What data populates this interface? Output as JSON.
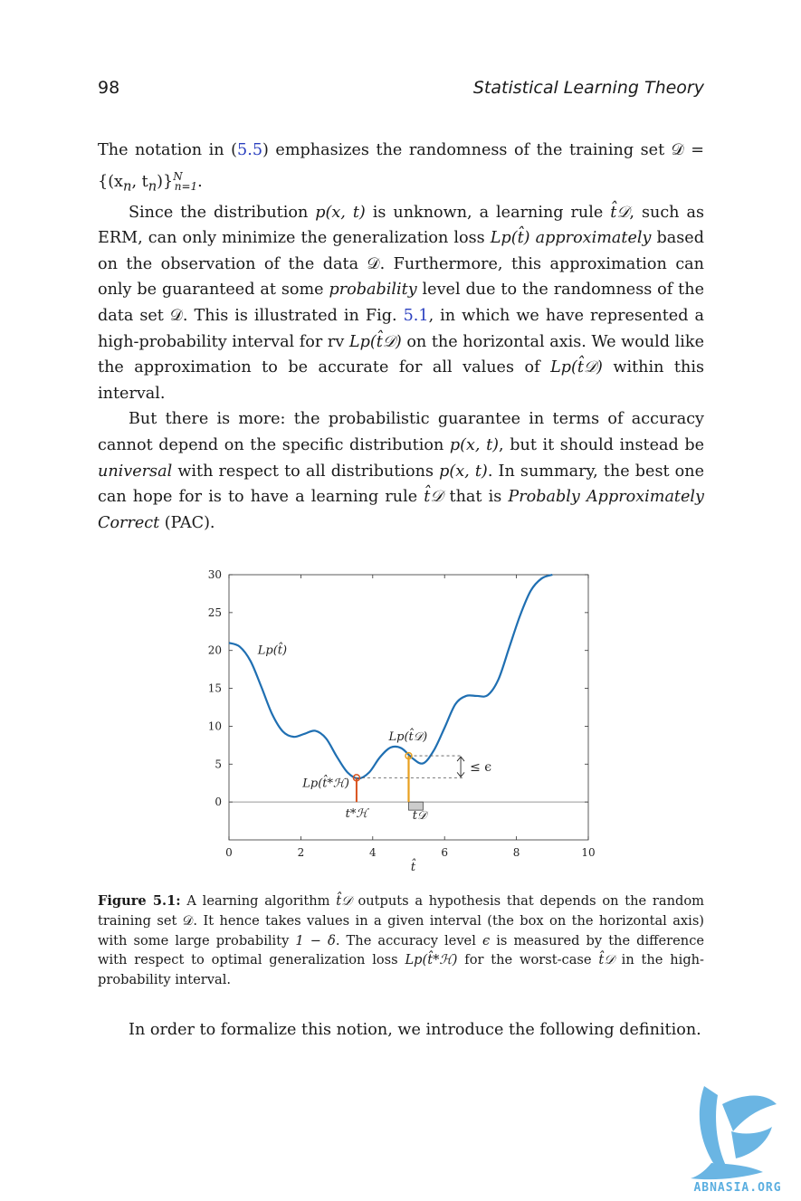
{
  "header": {
    "page_number": "98",
    "chapter_title": "Statistical Learning Theory"
  },
  "paragraphs": {
    "p1": {
      "a": "The notation in (",
      "ref": "5.5",
      "b": ") emphasizes the randomness of the training set 𝒟 = {(x",
      "c": ", t",
      "d": ")}",
      "e": "."
    },
    "p2": {
      "a": "Since the distribution ",
      "b": " is unknown, a learning rule ",
      "c": ", such as ERM, can only minimize the generalization loss ",
      "d": " ",
      "approx": "approximately",
      "e": " based on the observation of the data 𝒟. Furthermore, this approximation can only be guaranteed at some ",
      "prob": "probability",
      "f": " level due to the randomness of the data set 𝒟. This is illustrated in Fig. ",
      "ref": "5.1",
      "g": ", in which we have represented a high-probability interval for rv ",
      "h": " on the horizontal axis. We would like the approximation to be accurate for all values of ",
      "i": " within this interval."
    },
    "p3": {
      "a": "But there is more: the probabilistic guarantee in terms of accuracy cannot depend on the specific distribution ",
      "b": ", but it should instead be ",
      "universal": "universal",
      "c": " with respect to all distributions ",
      "d": ". In summary, the best one can hope for is to have a learning rule ",
      "e": " that is ",
      "pac": "Probably Approximately Correct",
      "f": " (PAC)."
    },
    "closing": "In order to formalize this notion, we introduce the following definition."
  },
  "math": {
    "pxt": "p(x, t)",
    "t_hat_D": "t̂𝒟",
    "Lp_that": "Lp(t̂)",
    "Lp_that_D": "Lp(t̂𝒟)",
    "Lp_that_H": "Lp(t̂*ℋ)",
    "n": "n",
    "N": "N",
    "n_eq_1": "n=1",
    "delta": "1 − δ",
    "epsilon": "ϵ"
  },
  "caption": {
    "label": "Figure 5.1:",
    "a": " A learning algorithm ",
    "b": " outputs a hypothesis that depends on the random training set 𝒟. It hence takes values in a given interval (the box on the horizontal axis) with some large probability ",
    "c": ". The accuracy level ",
    "d": " is measured by the difference with respect to optimal generalization loss ",
    "e": " for the worst-case ",
    "f": " in the high-probability interval."
  },
  "chart_data": {
    "type": "line",
    "title": "",
    "xlabel": "t̂",
    "ylabel": "",
    "xlim": [
      0,
      10
    ],
    "ylim": [
      -5,
      30
    ],
    "x_ticks": [
      "0",
      "2",
      "4",
      "6",
      "8",
      "10"
    ],
    "y_ticks": [
      "0",
      "5",
      "10",
      "15",
      "20",
      "25",
      "30"
    ],
    "series": [
      {
        "name": "Lp(t̂)",
        "color": "#1f6fb2",
        "x": [
          0,
          0.3,
          0.6,
          0.9,
          1.2,
          1.5,
          1.8,
          2.1,
          2.4,
          2.7,
          3.0,
          3.3,
          3.6,
          3.9,
          4.2,
          4.5,
          4.8,
          5.1,
          5.4,
          5.7,
          6.0,
          6.3,
          6.6,
          6.9,
          7.2,
          7.5,
          7.8,
          8.1,
          8.4,
          8.7,
          9.0
        ],
        "y": [
          21,
          20.5,
          18.6,
          15.2,
          11.6,
          9.3,
          8.6,
          9.0,
          9.4,
          8.4,
          6.0,
          3.9,
          3.1,
          3.9,
          5.9,
          7.2,
          7.1,
          5.8,
          5.1,
          6.8,
          9.8,
          12.9,
          14.0,
          14.0,
          14.1,
          16.2,
          20.4,
          24.6,
          27.9,
          29.5,
          30.0
        ]
      }
    ],
    "points": [
      {
        "label": "Lp(t̂*ℋ)",
        "x": 3.55,
        "y": 3.2,
        "color": "#d9531e",
        "axis_label": "t*ℋ"
      },
      {
        "label": "Lp(t̂𝒟)",
        "x": 5.0,
        "y": 6.1,
        "color": "#e8a01e",
        "axis_label": "t𝒟"
      }
    ],
    "interval_box": {
      "x": [
        5.0,
        5.4
      ]
    },
    "annotation": "≤ ϵ",
    "curve_label": "Lp(t̂)",
    "grid": false
  },
  "watermark": {
    "text": "ABNASIA.ORG",
    "color": "#5aaee0"
  }
}
